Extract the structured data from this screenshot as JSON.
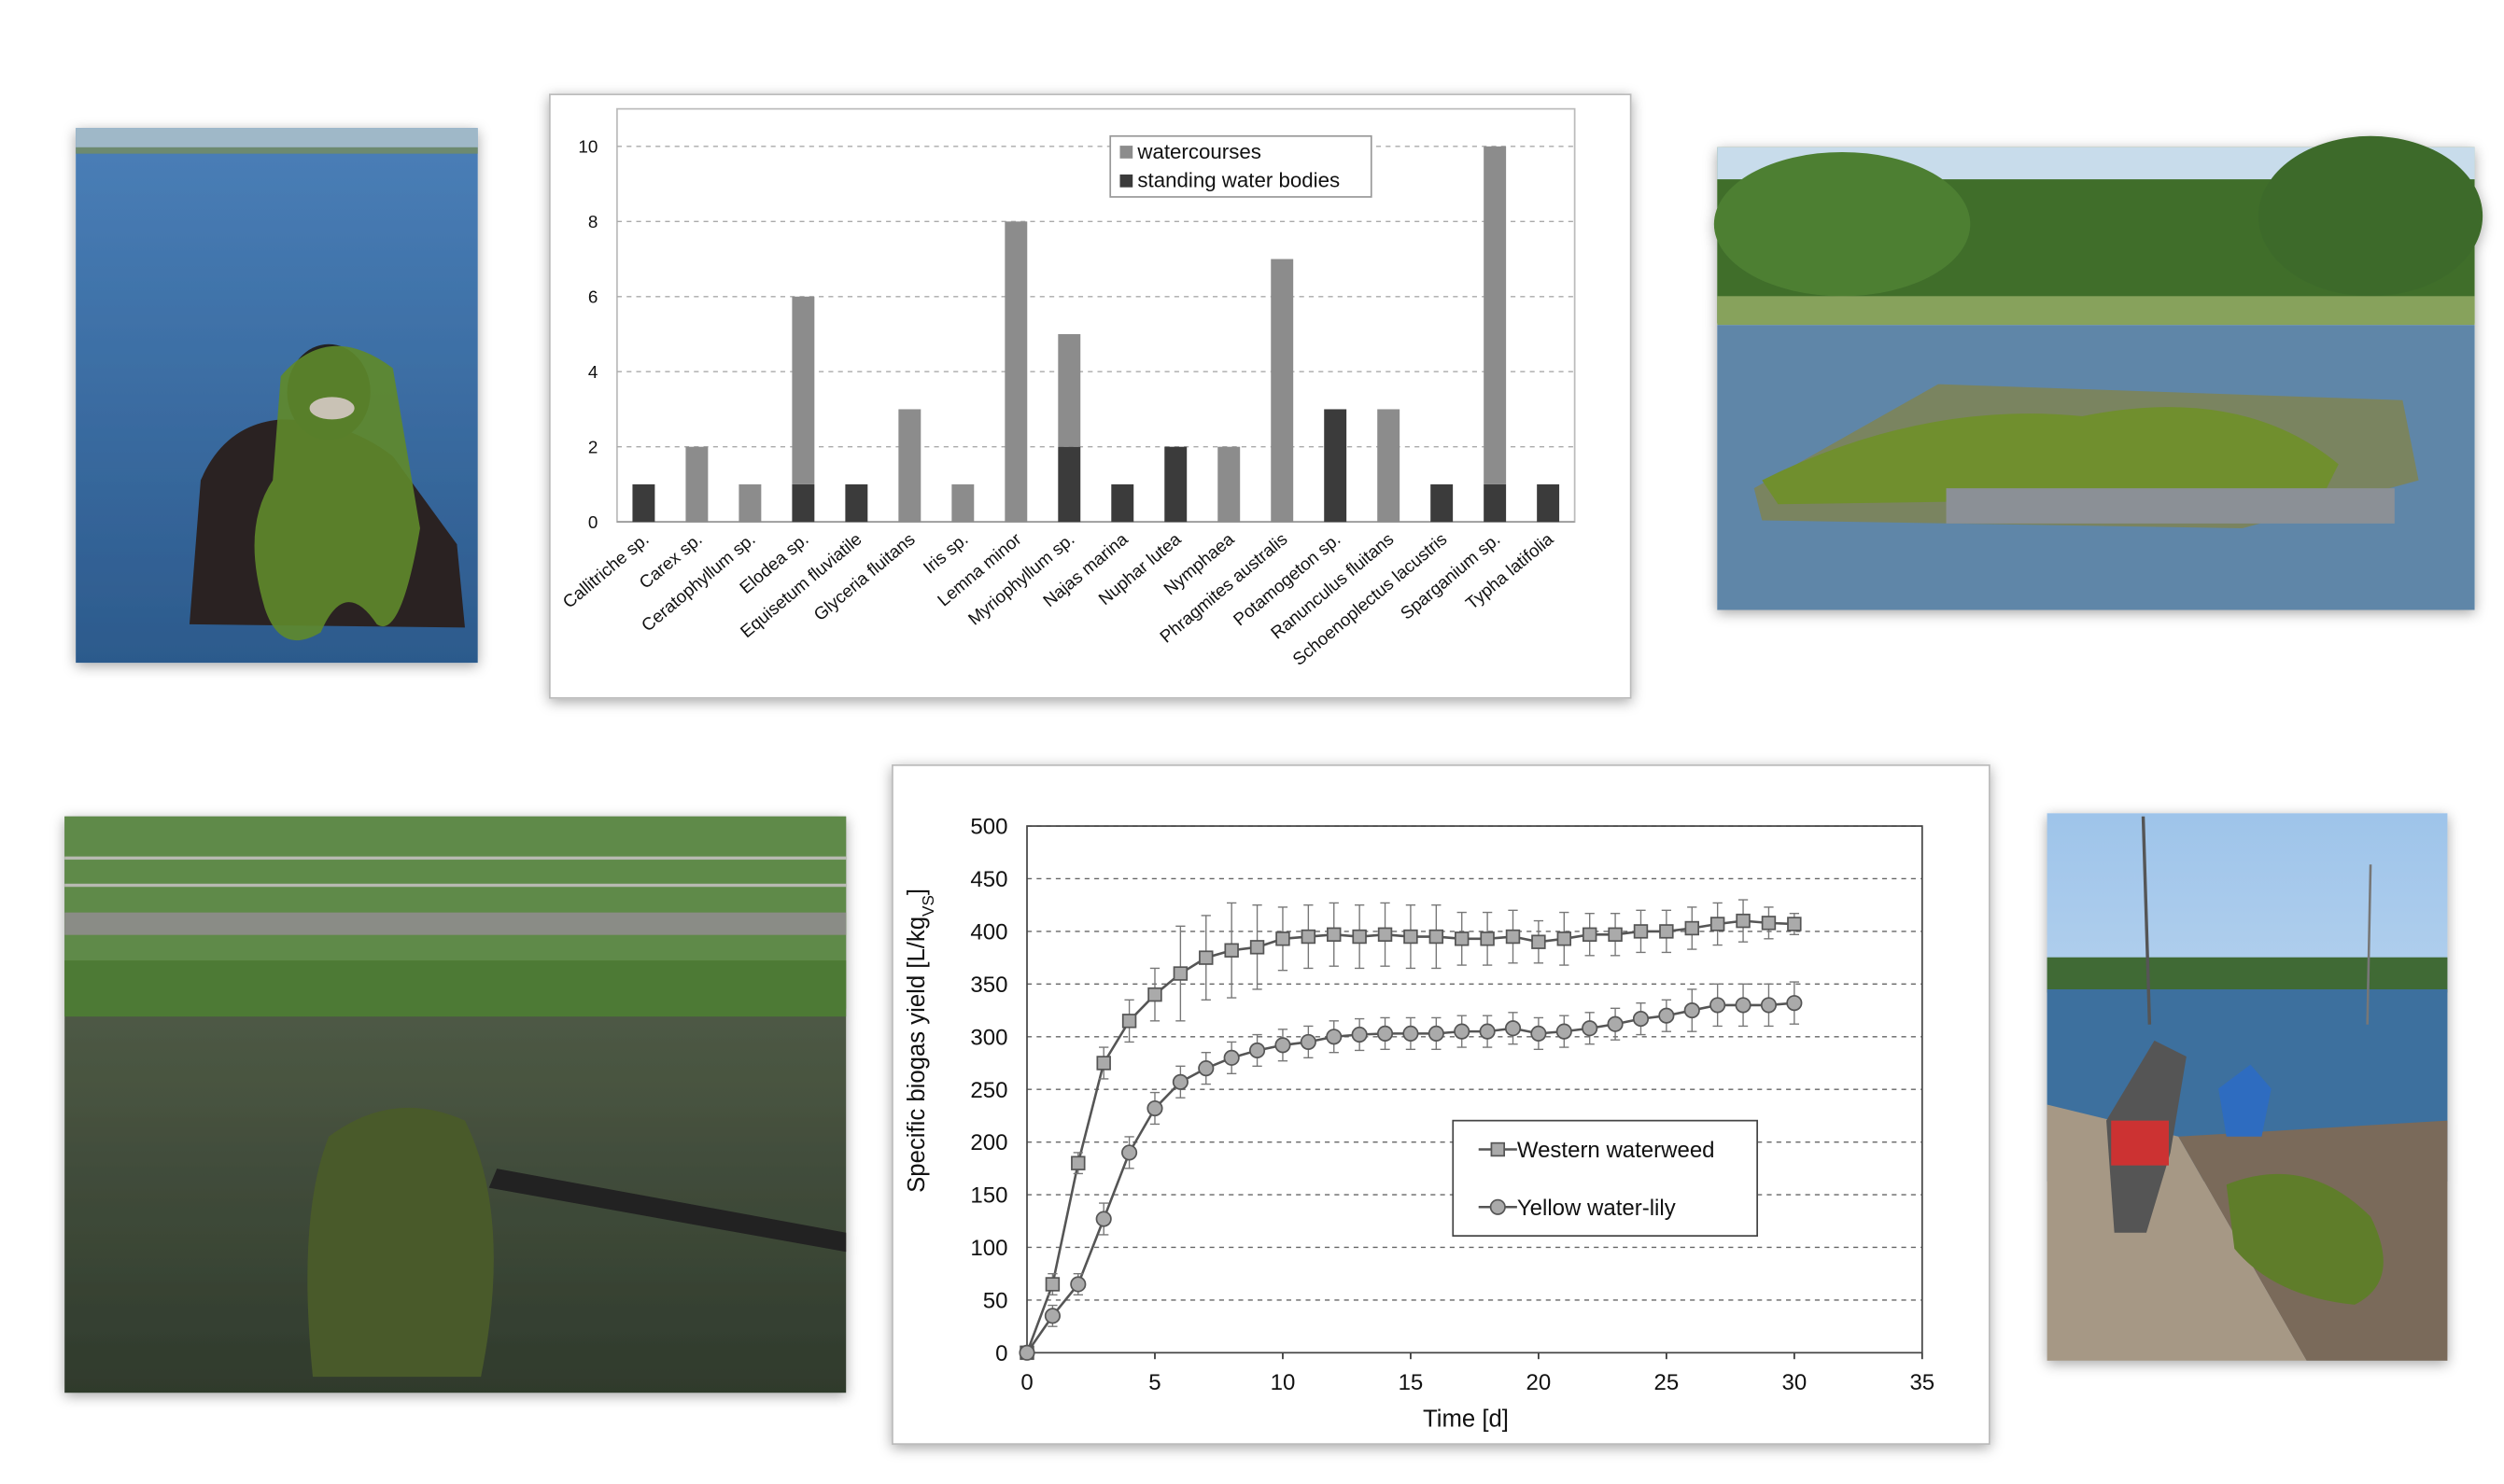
{
  "chart_data": [
    {
      "type": "bar",
      "categories": [
        "Callitriche sp.",
        "Carex sp.",
        "Ceratophyllum sp.",
        "Elodea sp.",
        "Equisetum fluviatile",
        "Glyceria fluitans",
        "Iris sp.",
        "Lemna minor",
        "Myriophyllum sp.",
        "Najas marina",
        "Nuphar lutea",
        "Nymphaea",
        "Phragmites australis",
        "Potamogeton sp.",
        "Ranunculus fluitans",
        "Schoenoplectus lacustris",
        "Sparganium sp.",
        "Typha latifolia"
      ],
      "series": [
        {
          "name": "standing water bodies",
          "color": "#3b3b3b",
          "values": [
            1,
            0,
            0,
            1,
            1,
            0,
            0,
            0,
            2,
            1,
            2,
            0,
            0,
            3,
            0,
            1,
            1,
            1
          ]
        },
        {
          "name": "watercourses",
          "color": "#8c8c8c",
          "values": [
            0,
            2,
            1,
            5,
            0,
            3,
            1,
            8,
            3,
            0,
            0,
            2,
            7,
            0,
            3,
            0,
            9,
            0
          ]
        }
      ],
      "stacked": true,
      "ylim": [
        0,
        11
      ],
      "yticks": [
        0,
        2,
        4,
        6,
        8,
        10
      ],
      "grid": true,
      "legend": "top-center"
    },
    {
      "type": "line",
      "x_label": "Time [d]",
      "y_label": {
        "text": "Specific biogas yield [L/kg",
        "subscript": "VS",
        "suffix": "]"
      },
      "x": [
        0,
        1,
        2,
        3,
        4,
        5,
        6,
        7,
        8,
        9,
        10,
        11,
        12,
        13,
        14,
        15,
        16,
        17,
        18,
        19,
        20,
        21,
        22,
        23,
        24,
        25,
        26,
        27,
        28,
        29,
        30
      ],
      "series": [
        {
          "name": "Western waterweed",
          "color": "#555555",
          "marker": "square",
          "values": [
            0,
            65,
            180,
            275,
            315,
            340,
            360,
            375,
            382,
            385,
            393,
            395,
            397,
            395,
            397,
            395,
            395,
            393,
            393,
            395,
            390,
            393,
            397,
            397,
            400,
            400,
            403,
            407,
            410,
            408,
            407
          ],
          "errors": [
            0,
            10,
            10,
            15,
            20,
            25,
            45,
            40,
            45,
            40,
            30,
            30,
            30,
            30,
            30,
            30,
            30,
            25,
            25,
            25,
            20,
            25,
            20,
            20,
            20,
            20,
            20,
            20,
            20,
            15,
            10
          ]
        },
        {
          "name": "Yellow water-lily",
          "color": "#555555",
          "marker": "circle",
          "values": [
            0,
            35,
            65,
            127,
            190,
            232,
            257,
            270,
            280,
            287,
            292,
            295,
            300,
            302,
            303,
            303,
            303,
            305,
            305,
            308,
            303,
            305,
            308,
            312,
            317,
            320,
            325,
            330,
            330,
            330,
            332
          ],
          "errors": [
            0,
            10,
            10,
            15,
            15,
            15,
            15,
            15,
            15,
            15,
            15,
            15,
            15,
            15,
            15,
            15,
            15,
            15,
            15,
            15,
            15,
            15,
            15,
            15,
            15,
            15,
            20,
            20,
            20,
            20,
            20
          ]
        }
      ],
      "xlim": [
        0,
        35
      ],
      "xticks": [
        0,
        5,
        10,
        15,
        20,
        25,
        30,
        35
      ],
      "ylim": [
        0,
        500
      ],
      "yticks": [
        0,
        50,
        100,
        150,
        200,
        250,
        300,
        350,
        400,
        450,
        500
      ],
      "grid": true,
      "legend": "lower-right"
    }
  ]
}
